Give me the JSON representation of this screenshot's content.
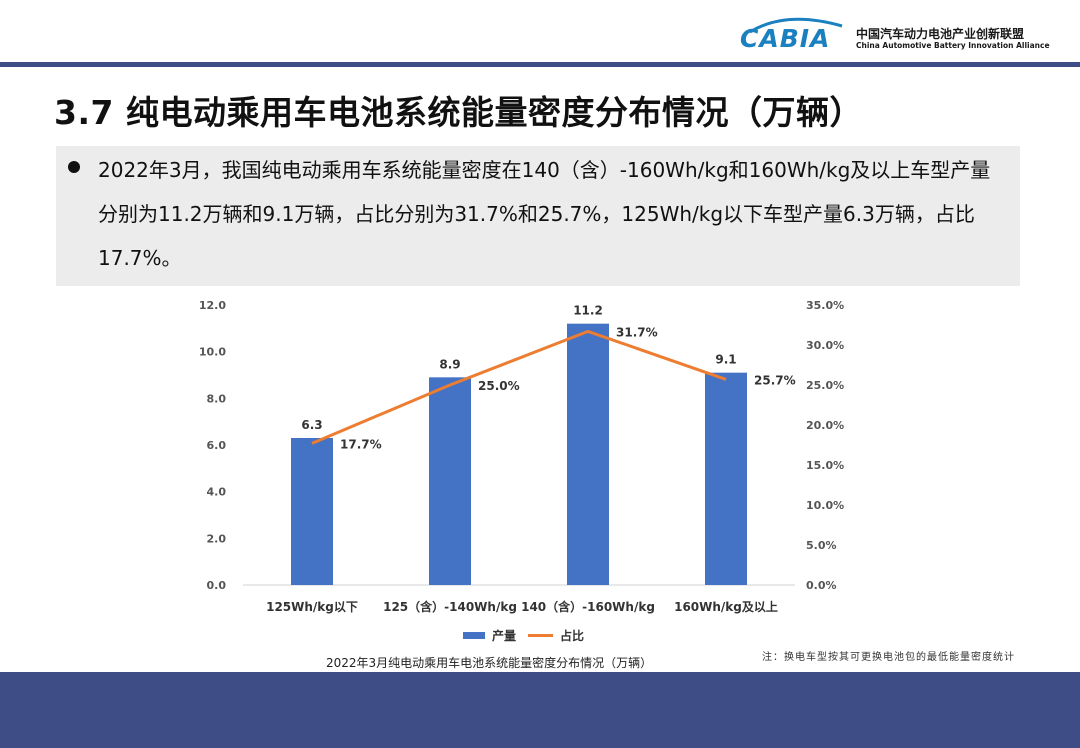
{
  "header": {
    "logo_text": "CABIA",
    "org_name_cn": "中国汽车动力电池产业创新联盟",
    "org_name_en": "China Automotive Battery Innovation Alliance",
    "accent_color": "#3e4d86",
    "logo_color": "#1a80bf"
  },
  "slide": {
    "title": "3.7 纯电动乘用车电池系统能量密度分布情况（万辆）",
    "summary": "2022年3月，我国纯电动乘用车系统能量密度在140（含）-160Wh/kg和160Wh/kg及以上车型产量分别为11.2万辆和9.1万辆，占比分别为31.7%和25.7%，125Wh/kg以下车型产量6.3万辆，占比17.7%。",
    "chart_caption": "2022年3月纯电动乘用车电池系统能量密度分布情况（万辆）",
    "note": "注：换电车型按其可更换电池包的最低能量密度统计"
  },
  "chart_data": {
    "type": "bar",
    "categories": [
      "125Wh/kg以下",
      "125（含）-140Wh/kg",
      "140（含）-160Wh/kg",
      "160Wh/kg及以上"
    ],
    "series": [
      {
        "name": "产量",
        "type": "bar",
        "axis": "left",
        "color": "#4472c4",
        "values": [
          6.3,
          8.9,
          11.2,
          9.1
        ],
        "labels": [
          "6.3",
          "8.9",
          "11.2",
          "9.1"
        ]
      },
      {
        "name": "占比",
        "type": "line",
        "axis": "right",
        "color": "#ed7d31",
        "values": [
          17.7,
          25.0,
          31.7,
          25.7
        ],
        "labels": [
          "17.7%",
          "25.0%",
          "31.7%",
          "25.7%"
        ]
      }
    ],
    "y_left": {
      "min": 0,
      "max": 12,
      "ticks": [
        "0.0",
        "2.0",
        "4.0",
        "6.0",
        "8.0",
        "10.0",
        "12.0"
      ]
    },
    "y_right": {
      "min": 0,
      "max": 35,
      "ticks": [
        "0.0%",
        "5.0%",
        "10.0%",
        "15.0%",
        "20.0%",
        "25.0%",
        "30.0%",
        "35.0%"
      ]
    },
    "grid": false,
    "legend": "bottom"
  }
}
